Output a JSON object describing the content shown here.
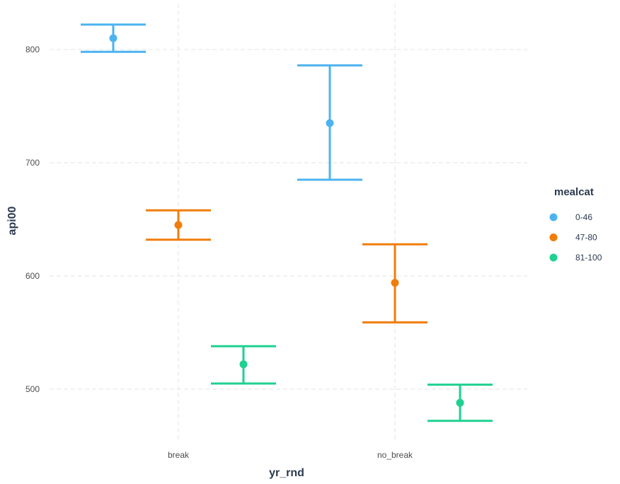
{
  "chart_data": {
    "type": "errorbar",
    "xlabel": "yr_rnd",
    "ylabel": "api00",
    "categories": [
      "break",
      "no_break"
    ],
    "yticks": [
      500,
      600,
      700,
      800
    ],
    "ylim": [
      455,
      840
    ],
    "grid": true,
    "legend": {
      "title": "mealcat",
      "placement": "right"
    },
    "series": [
      {
        "name": "0-46",
        "color": "#4db3f0",
        "points": [
          {
            "x": "break",
            "y": 810,
            "ymin": 798,
            "ymax": 822
          },
          {
            "x": "no_break",
            "y": 735,
            "ymin": 685,
            "ymax": 786
          }
        ]
      },
      {
        "name": "47-80",
        "color": "#f07d0a",
        "points": [
          {
            "x": "break",
            "y": 645,
            "ymin": 632,
            "ymax": 658
          },
          {
            "x": "no_break",
            "y": 594,
            "ymin": 559,
            "ymax": 628
          }
        ]
      },
      {
        "name": "81-100",
        "color": "#1fd190",
        "points": [
          {
            "x": "break",
            "y": 522,
            "ymin": 505,
            "ymax": 538
          },
          {
            "x": "no_break",
            "y": 488,
            "ymin": 472,
            "ymax": 504
          }
        ]
      }
    ]
  }
}
